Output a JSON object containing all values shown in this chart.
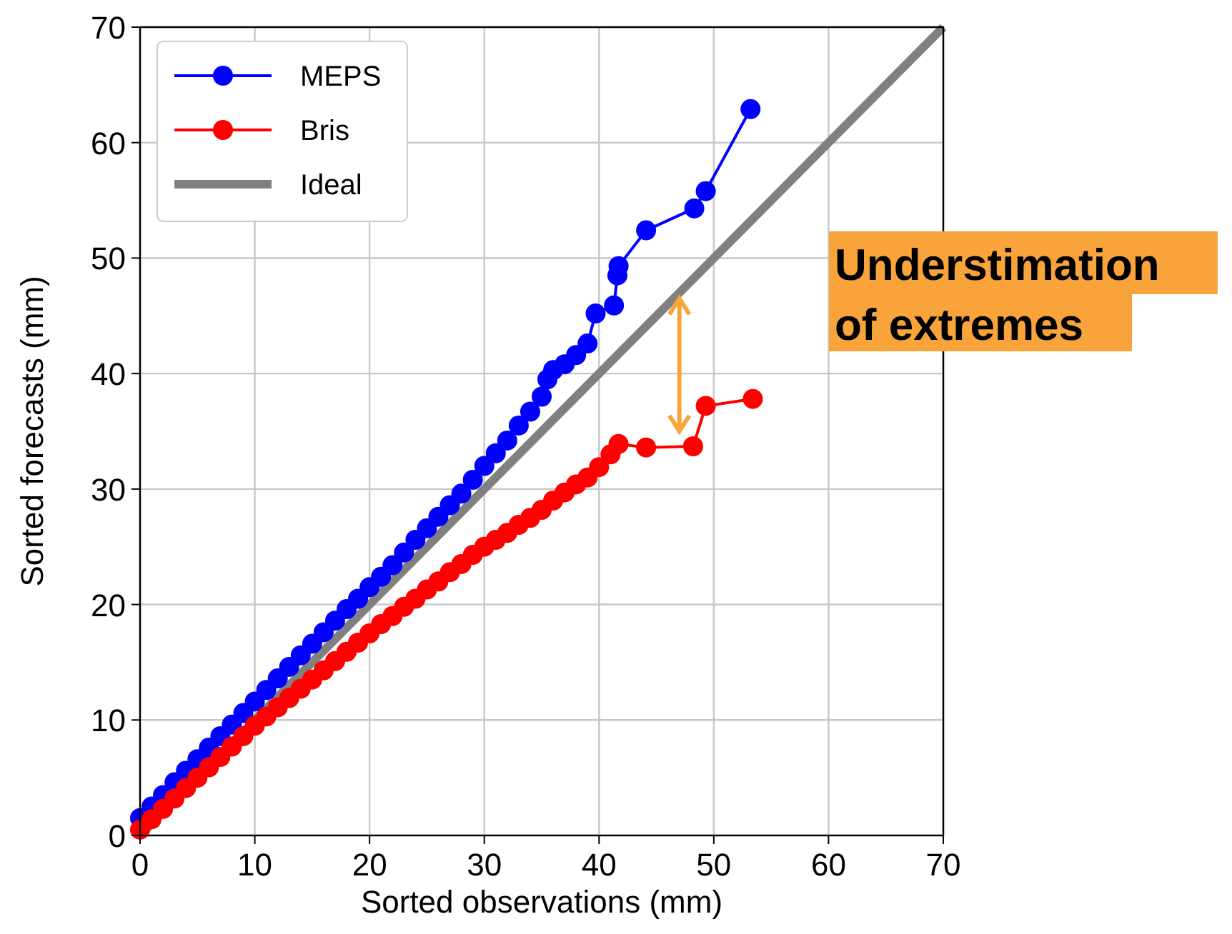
{
  "chart_data": {
    "type": "line",
    "xlabel": "Sorted observations (mm)",
    "ylabel": "Sorted forecasts (mm)",
    "xlim": [
      0,
      70
    ],
    "ylim": [
      0,
      70
    ],
    "xticks": [
      0,
      10,
      20,
      30,
      40,
      50,
      60,
      70
    ],
    "yticks": [
      0,
      10,
      20,
      30,
      40,
      50,
      60,
      70
    ],
    "grid": true,
    "legend": "top left",
    "annotations": [
      "Understimation of extremes"
    ],
    "series": [
      {
        "name": "MEPS",
        "color": "#0000ff",
        "marker": "circle",
        "x": [
          0,
          1,
          2,
          3,
          4,
          5,
          6,
          7,
          8,
          9,
          10,
          11,
          12,
          13,
          14,
          15,
          16,
          17,
          18,
          19,
          20,
          21,
          22,
          23,
          24,
          25,
          26,
          27,
          28,
          29,
          30,
          31,
          32,
          33,
          34,
          35,
          35.5,
          36,
          37,
          38,
          39,
          39.7,
          41.3,
          41.6,
          41.7,
          44.1,
          48.3,
          49.3,
          53.2
        ],
        "values": [
          1.5,
          2.5,
          3.5,
          4.6,
          5.6,
          6.6,
          7.6,
          8.6,
          9.6,
          10.6,
          11.6,
          12.6,
          13.6,
          14.6,
          15.6,
          16.6,
          17.6,
          18.6,
          19.6,
          20.5,
          21.5,
          22.4,
          23.4,
          24.5,
          25.6,
          26.6,
          27.6,
          28.6,
          29.6,
          30.8,
          32,
          33.1,
          34.2,
          35.5,
          36.7,
          38,
          39.5,
          40.3,
          40.8,
          41.6,
          42.6,
          45.2,
          45.9,
          48.5,
          49.3,
          52.4,
          54.3,
          55.8,
          62.9
        ]
      },
      {
        "name": "Bris",
        "color": "#ff0000",
        "marker": "circle",
        "x": [
          0,
          1,
          2,
          3,
          4,
          5,
          6,
          7,
          8,
          9,
          10,
          11,
          12,
          13,
          14,
          15,
          16,
          17,
          18,
          19,
          20,
          21,
          22,
          23,
          24,
          25,
          26,
          27,
          28,
          29,
          30,
          31,
          32,
          33,
          34,
          35,
          36,
          37,
          38,
          39,
          40,
          41,
          41.7,
          44.1,
          48.2,
          49.3,
          53.4
        ],
        "values": [
          0.5,
          1.4,
          2.3,
          3.2,
          4.1,
          5,
          5.9,
          6.8,
          7.7,
          8.6,
          9.5,
          10.3,
          11.1,
          11.9,
          12.7,
          13.5,
          14.3,
          15.1,
          15.9,
          16.7,
          17.5,
          18.3,
          19,
          19.8,
          20.5,
          21.3,
          22,
          22.8,
          23.5,
          24.3,
          25,
          25.6,
          26.2,
          26.9,
          27.5,
          28.2,
          29,
          29.7,
          30.4,
          31,
          31.9,
          33,
          33.9,
          33.6,
          33.7,
          37.2,
          37.8
        ]
      },
      {
        "name": "Ideal",
        "color": "#808080",
        "marker": "none",
        "x": [
          0,
          70
        ],
        "values": [
          0,
          70
        ]
      }
    ]
  }
}
